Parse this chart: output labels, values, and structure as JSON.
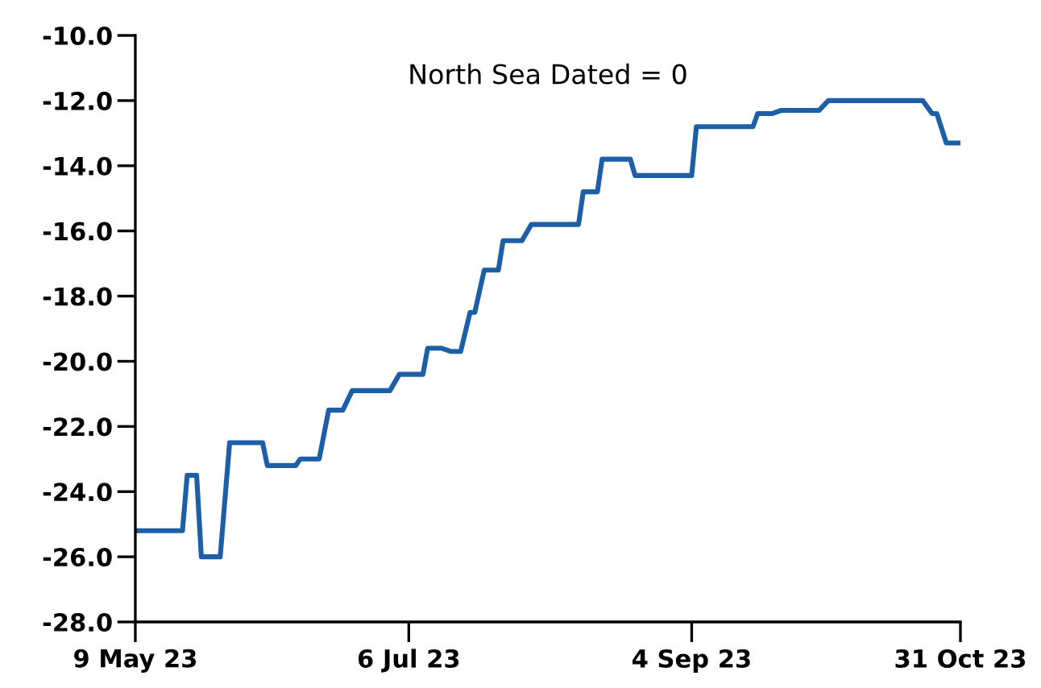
{
  "chart_data": {
    "type": "line",
    "annotations": [
      "North Sea Dated = 0"
    ],
    "series": [
      {
        "color": "#1c5fa6",
        "x": [
          "2023-05-09",
          "2023-05-19",
          "2023-05-20",
          "2023-05-22",
          "2023-05-23",
          "2023-05-27",
          "2023-05-29",
          "2023-06-05",
          "2023-06-06",
          "2023-06-12",
          "2023-06-13",
          "2023-06-17",
          "2023-06-19",
          "2023-06-22",
          "2023-06-24",
          "2023-07-02",
          "2023-07-04",
          "2023-07-09",
          "2023-07-10",
          "2023-07-13",
          "2023-07-15",
          "2023-07-17",
          "2023-07-19",
          "2023-07-20",
          "2023-07-22",
          "2023-07-25",
          "2023-07-26",
          "2023-07-30",
          "2023-08-01",
          "2023-08-11",
          "2023-08-12",
          "2023-08-15",
          "2023-08-16",
          "2023-08-22",
          "2023-08-23",
          "2023-09-04",
          "2023-09-05",
          "2023-09-17",
          "2023-09-18",
          "2023-09-21",
          "2023-09-23",
          "2023-10-01",
          "2023-10-03",
          "2023-10-23",
          "2023-10-25",
          "2023-10-26",
          "2023-10-28",
          "2023-10-31"
        ],
        "values": [
          -25.2,
          -25.2,
          -23.5,
          -23.5,
          -26.0,
          -26.0,
          -22.5,
          -22.5,
          -23.2,
          -23.2,
          -23.0,
          -23.0,
          -21.5,
          -21.5,
          -20.9,
          -20.9,
          -20.4,
          -20.4,
          -19.6,
          -19.6,
          -19.7,
          -19.7,
          -18.5,
          -18.5,
          -17.2,
          -17.2,
          -16.3,
          -16.3,
          -15.8,
          -15.8,
          -14.8,
          -14.8,
          -13.8,
          -13.8,
          -14.3,
          -14.3,
          -12.8,
          -12.8,
          -12.4,
          -12.4,
          -12.3,
          -12.3,
          -12.0,
          -12.0,
          -12.4,
          -12.4,
          -13.3,
          -13.3
        ]
      }
    ],
    "xlim": [
      "2023-05-09",
      "2023-10-31"
    ],
    "xticks": [
      {
        "value": "2023-05-09",
        "label": "9 May 23"
      },
      {
        "value": "2023-07-06",
        "label": "6 Jul 23"
      },
      {
        "value": "2023-09-04",
        "label": "4 Sep 23"
      },
      {
        "value": "2023-10-31",
        "label": "31 Oct 23"
      }
    ],
    "ylim": [
      -28,
      -10
    ],
    "yticks": [
      {
        "value": -28,
        "label": "-28.0"
      },
      {
        "value": -26,
        "label": "-26.0"
      },
      {
        "value": -24,
        "label": "-24.0"
      },
      {
        "value": -22,
        "label": "-22.0"
      },
      {
        "value": -20,
        "label": "-20.0"
      },
      {
        "value": -18,
        "label": "-18.0"
      },
      {
        "value": -16,
        "label": "-16.0"
      },
      {
        "value": -14,
        "label": "-14.0"
      },
      {
        "value": -12,
        "label": "-12.0"
      },
      {
        "value": -10,
        "label": "-10.0"
      }
    ],
    "grid": false,
    "marker": "none",
    "line_style": "solid"
  }
}
